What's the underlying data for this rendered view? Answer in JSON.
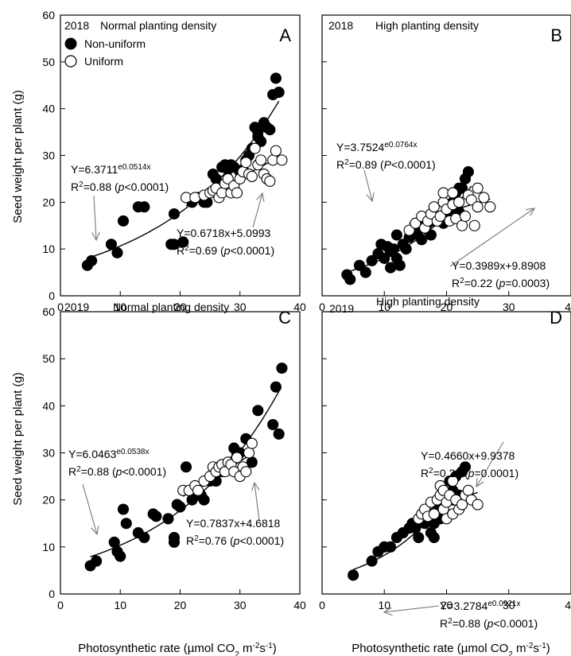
{
  "y_axis_title": "Seed weight per plant (g)",
  "x_axis_titles": [
    "Photosynthetic rate (µmol CO",
    "2",
    " m",
    "-2",
    "s",
    "-1",
    ")"
  ],
  "chart_data": [
    {
      "type": "scatter",
      "letter": "A",
      "year": "2018",
      "title": "Normal planting density",
      "xlim": [
        0,
        40
      ],
      "ylim": [
        0,
        60
      ],
      "xticks": [
        0,
        10,
        20,
        30,
        40
      ],
      "yticks": [
        0,
        10,
        20,
        30,
        40,
        50,
        60
      ],
      "legend": {
        "placement": "top-left",
        "entries": [
          "Non-uniform",
          "Uniform"
        ]
      },
      "series": [
        {
          "name": "Non-uniform",
          "marker": "filled",
          "x": [
            4.5,
            5.2,
            8.5,
            9.5,
            10.5,
            13,
            14,
            18.5,
            19,
            19,
            20.5,
            22,
            23,
            24,
            24.5,
            25,
            25.5,
            26,
            26,
            27,
            27.5,
            28,
            28.5,
            29,
            30,
            30.5,
            31,
            31.5,
            32,
            32.5,
            33,
            33,
            33.5,
            34,
            34.5,
            35,
            35.5,
            36,
            36.5
          ],
          "y": [
            6.5,
            7.5,
            11,
            9.2,
            16,
            19,
            19,
            11,
            11,
            17.5,
            11.5,
            20,
            21,
            20,
            20,
            22,
            26,
            22,
            25,
            27.5,
            28,
            27,
            28,
            27.5,
            26.5,
            27,
            29,
            30,
            31.5,
            36,
            34,
            35,
            33,
            37,
            36,
            35.5,
            43,
            46.5,
            43.5
          ]
        },
        {
          "name": "Uniform",
          "marker": "open",
          "x": [
            21,
            22.5,
            24,
            25,
            25.5,
            26,
            26.5,
            27,
            27.5,
            28,
            28.5,
            29,
            29.5,
            30,
            30.5,
            31,
            31.5,
            32,
            32.5,
            33,
            33.5,
            34,
            34.5,
            35,
            35.5,
            36,
            37
          ],
          "y": [
            21,
            21,
            21.5,
            22,
            22.5,
            23,
            21,
            22,
            24,
            25,
            22,
            23.5,
            22,
            25,
            26.5,
            28.5,
            26,
            25.5,
            31.5,
            28,
            29,
            26,
            25,
            24.5,
            29,
            31,
            29
          ]
        }
      ],
      "fits": [
        {
          "kind": "exp",
          "a": 6.3711,
          "b": 0.0514,
          "range": [
            4.5,
            36.5
          ],
          "equation": "Y=6.3711",
          "exponent": "e0.0514x",
          "r2": "=0.88 (",
          "p_letter": "p",
          "p_value": "<0.0001)"
        },
        {
          "kind": "linear",
          "m": 0.6718,
          "c": 5.0993,
          "range": [
            21,
            37
          ],
          "equation": "Y=0.6718x+5.0993",
          "r2": "=0.69 (",
          "p_letter": "p",
          "p_value": "<0.0001)"
        }
      ]
    },
    {
      "type": "scatter",
      "letter": "B",
      "year": "2018",
      "title": "High planting density",
      "xlim": [
        0,
        40
      ],
      "ylim": [
        0,
        60
      ],
      "xticks": [
        0,
        10,
        20,
        30,
        40
      ],
      "yticks": [
        0,
        10,
        20,
        30,
        40,
        50,
        60
      ],
      "series": [
        {
          "name": "Non-uniform",
          "marker": "filled",
          "x": [
            4,
            4.5,
            6,
            7,
            8,
            9,
            9.5,
            10,
            10.5,
            11,
            11,
            11.5,
            12,
            12,
            12.5,
            13,
            13.5,
            14,
            14.5,
            15,
            15.5,
            16,
            16,
            17,
            17.5,
            18,
            19,
            19.5,
            20,
            20.5,
            21,
            21.5,
            22,
            22,
            22.5,
            23,
            23.5
          ],
          "y": [
            4.5,
            3.5,
            6.5,
            5,
            7.5,
            9,
            11,
            8,
            10.5,
            6,
            9.5,
            10,
            8,
            13,
            6.5,
            11,
            10,
            12.5,
            13,
            15,
            14,
            12,
            16,
            15.5,
            13,
            16,
            16,
            15.5,
            17,
            18.5,
            20,
            22,
            18,
            23,
            23,
            25,
            26.5
          ]
        },
        {
          "name": "Uniform",
          "marker": "open",
          "x": [
            14,
            15,
            16,
            16.5,
            17,
            17.5,
            18,
            18.5,
            19,
            19.5,
            19.5,
            20,
            20.5,
            21,
            21,
            21.5,
            22,
            22.5,
            23,
            23.5,
            24,
            24.5,
            25,
            25,
            26,
            27
          ],
          "y": [
            14,
            15.5,
            17,
            14.5,
            16,
            17.5,
            19,
            16,
            17,
            20,
            22,
            18.5,
            16,
            19.5,
            22,
            16.5,
            20,
            15,
            17,
            21.5,
            20.5,
            15,
            19,
            23,
            21,
            19
          ]
        }
      ],
      "fits": [
        {
          "kind": "exp",
          "a": 3.7524,
          "b": 0.0764,
          "range": [
            4,
            24
          ],
          "equation": "Y=3.7524",
          "exponent": "e0.0764x",
          "r2": "=0.89 (",
          "p_letter": "P",
          "p_value": "<0.0001)"
        },
        {
          "kind": "linear",
          "m": 0.3989,
          "c": 9.8908,
          "range": [
            14,
            27
          ],
          "equation": "Y=0.3989x+9.8908",
          "r2": "=0.22 (",
          "p_letter": "p",
          "p_value": "=0.0003)"
        }
      ]
    },
    {
      "type": "scatter",
      "letter": "C",
      "year": "2019",
      "title": "Normal planting density",
      "xlim": [
        0,
        40
      ],
      "ylim": [
        0,
        60
      ],
      "xticks": [
        0,
        10,
        20,
        30,
        40
      ],
      "yticks": [
        0,
        10,
        20,
        30,
        40,
        50,
        60
      ],
      "series": [
        {
          "name": "Non-uniform",
          "marker": "filled",
          "x": [
            5,
            6,
            9,
            9.5,
            10,
            10.5,
            11,
            13,
            14,
            15.5,
            16,
            18,
            19,
            19,
            19.5,
            20,
            21,
            22,
            23,
            23.5,
            24,
            25,
            26,
            27,
            28,
            28.5,
            29,
            29.5,
            30,
            31,
            32,
            33,
            35.5,
            36,
            36.5,
            37
          ],
          "y": [
            6,
            7,
            11,
            9,
            8,
            18,
            15,
            13,
            12,
            17,
            16.5,
            16,
            11,
            12,
            19,
            18.5,
            27,
            20,
            21,
            21,
            20,
            24,
            24,
            26,
            27,
            28,
            31,
            29.5,
            30,
            33,
            28,
            39,
            36,
            44,
            34,
            48
          ]
        },
        {
          "name": "Uniform",
          "marker": "open",
          "x": [
            20.5,
            21.5,
            22.5,
            23,
            24,
            25,
            25.5,
            26,
            26.5,
            27,
            27.5,
            28,
            28.5,
            29,
            29.5,
            30,
            30.5,
            31,
            31.5,
            32
          ],
          "y": [
            22,
            22,
            23,
            22,
            24,
            25,
            27,
            26,
            27,
            27.5,
            26,
            28,
            27.5,
            26,
            29,
            25,
            27,
            26,
            30,
            32
          ]
        }
      ],
      "fits": [
        {
          "kind": "exp",
          "a": 6.0463,
          "b": 0.0538,
          "range": [
            5,
            36.5
          ],
          "equation": "Y=6.0463",
          "exponent": "e0.0538x",
          "r2": "=0.88 (",
          "p_letter": "p",
          "p_value": "<0.0001)"
        },
        {
          "kind": "linear",
          "m": 0.7837,
          "c": 4.6818,
          "range": [
            20.5,
            32
          ],
          "equation": "Y=0.7837x+4.6818",
          "r2": "=0.76 (",
          "p_letter": "p",
          "p_value": "<0.0001)"
        }
      ]
    },
    {
      "type": "scatter",
      "letter": "D",
      "year": "2019",
      "title": "High planting density",
      "xlim": [
        0,
        40
      ],
      "ylim": [
        0,
        60
      ],
      "xticks": [
        0,
        10,
        20,
        30,
        40
      ],
      "yticks": [
        0,
        10,
        20,
        30,
        40,
        50,
        60
      ],
      "series": [
        {
          "name": "Non-uniform",
          "marker": "filled",
          "x": [
            5,
            8,
            9,
            10,
            11,
            12,
            13,
            14,
            14.5,
            15,
            15.5,
            16,
            16.5,
            17,
            17.5,
            18,
            18,
            18.5,
            19,
            19,
            19.5,
            20,
            20.5,
            21,
            21,
            21.5,
            22,
            22.5,
            23
          ],
          "y": [
            4,
            7,
            9,
            10,
            10,
            12,
            13,
            14,
            15,
            14,
            12,
            16,
            15,
            17,
            13,
            12,
            15,
            19,
            16,
            20,
            18,
            21,
            24,
            22,
            20,
            25,
            21,
            26,
            27
          ]
        },
        {
          "name": "Uniform",
          "marker": "open",
          "x": [
            15.5,
            16,
            16.5,
            17,
            17.5,
            18,
            18.5,
            19,
            19,
            19.5,
            19.5,
            20,
            20,
            20.5,
            21,
            21,
            21.5,
            22,
            22.5,
            23,
            23.5,
            24,
            25
          ],
          "y": [
            16,
            17,
            18,
            16.5,
            19.5,
            17,
            20,
            21,
            23,
            18,
            22,
            19.5,
            16,
            21,
            17,
            24,
            20,
            18,
            19,
            21,
            22,
            20,
            19
          ]
        }
      ],
      "fits": [
        {
          "kind": "exp",
          "a": 3.2784,
          "b": 0.0921,
          "range": [
            5,
            23
          ],
          "equation": "Y=3.2784",
          "exponent": "e0.0921x",
          "r2": "=0.88 (",
          "p_letter": "p",
          "p_value": "<0.0001)"
        },
        {
          "kind": "linear",
          "m": 0.466,
          "c": 9.9378,
          "range": [
            15.5,
            25
          ],
          "equation": "Y=0.4660x+9.9378",
          "r2": "=0.27 (",
          "p_letter": "p",
          "p_value": "=0.0001)"
        }
      ]
    }
  ]
}
